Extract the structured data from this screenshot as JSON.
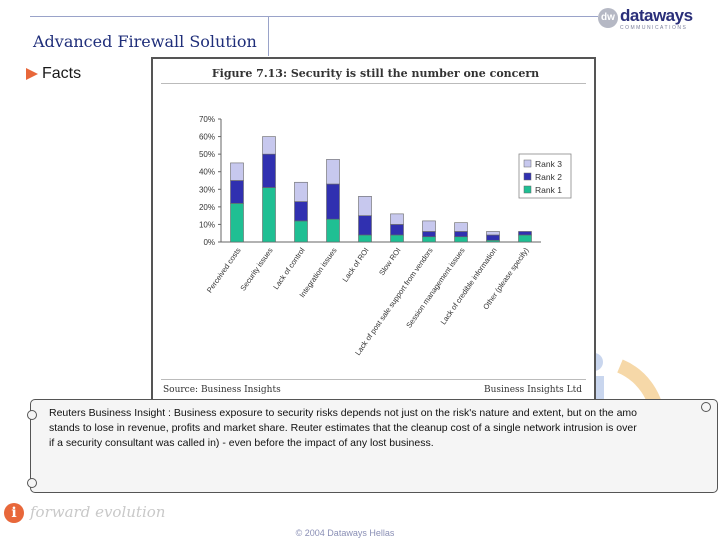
{
  "slide": {
    "title": "Advanced Firewall Solution",
    "bullet": "Facts",
    "footer_copyright": "© 2004 Dataways Hellas",
    "footer_slogan": "forward evolution",
    "colors": {
      "title": "#1f2e7a",
      "accent": "#e8673a"
    }
  },
  "logo": {
    "mark": "dw",
    "name": "dataways",
    "tagline": "COMMUNICATIONS"
  },
  "figure": {
    "source": "Source: Business Insights",
    "brand": "Business Insights Ltd"
  },
  "chart_data": {
    "type": "bar",
    "stacked": true,
    "title": "Figure 7.13: Security is still the number one concern",
    "xlabel": "",
    "ylabel": "",
    "ylim": [
      0,
      70
    ],
    "yticks": [
      "0%",
      "10%",
      "20%",
      "30%",
      "40%",
      "50%",
      "60%",
      "70%"
    ],
    "grid": false,
    "legend_position": "right",
    "categories": [
      "Perceived costs",
      "Security issues",
      "Lack of control",
      "Integration issues",
      "Lack of ROI",
      "Slow ROI",
      "Lack of post sale support from vendors",
      "Session management issues",
      "Lack of credible information",
      "Other (please specify)"
    ],
    "series": [
      {
        "name": "Rank 1",
        "color": "#1fbf93",
        "values": [
          22,
          31,
          12,
          13,
          4,
          4,
          3,
          3,
          1,
          4
        ]
      },
      {
        "name": "Rank 2",
        "color": "#3030b0",
        "values": [
          13,
          19,
          11,
          20,
          11,
          6,
          3,
          3,
          3,
          2
        ]
      },
      {
        "name": "Rank 3",
        "color": "#c7c8ee",
        "values": [
          10,
          10,
          11,
          14,
          11,
          6,
          6,
          5,
          2,
          0
        ]
      }
    ]
  },
  "note": {
    "lines": [
      "Reuters Business Insight : Business exposure to security risks depends not just on the risk's nature and extent, but on the amo",
      "stands to lose in revenue, profits and market share. Reuter estimates that the cleanup cost of a single network intrusion is over",
      "if a security consultant was called in) - even before the impact of any lost business."
    ]
  }
}
